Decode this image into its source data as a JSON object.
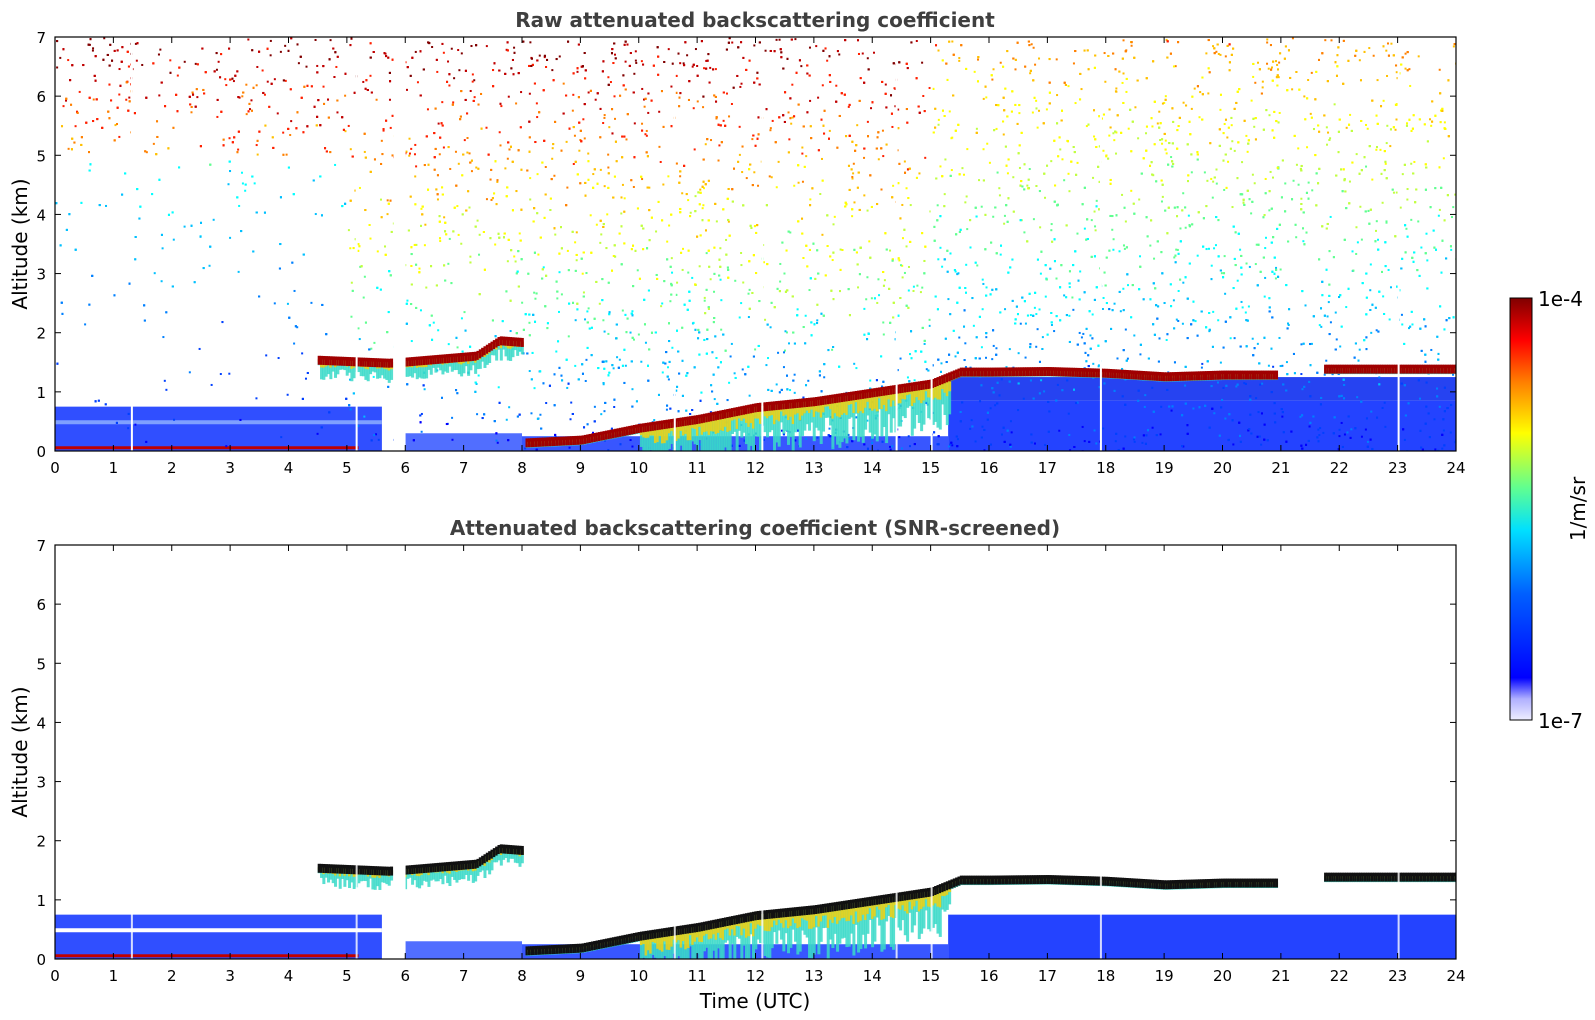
{
  "chart_data": [
    {
      "type": "heatmap",
      "title": "Raw attenuated backscattering coefficient",
      "xlabel": "",
      "ylabel": "Altitude (km)",
      "xlim": [
        0,
        24
      ],
      "ylim": [
        0,
        7
      ],
      "xticks": [
        "0",
        "1",
        "2",
        "3",
        "4",
        "5",
        "6",
        "7",
        "8",
        "9",
        "10",
        "11",
        "12",
        "13",
        "14",
        "15",
        "16",
        "17",
        "18",
        "19",
        "20",
        "21",
        "22",
        "23",
        "24"
      ],
      "yticks": [
        "0",
        "1",
        "2",
        "3",
        "4",
        "5",
        "6",
        "7"
      ],
      "screened": false,
      "cloud_base_km": [
        {
          "t": 4.5,
          "alt": 1.55
        },
        {
          "t": 5.7,
          "alt": 1.5
        },
        {
          "t": 6.0,
          "alt": 1.52
        },
        {
          "t": 7.2,
          "alt": 1.62
        },
        {
          "t": 7.6,
          "alt": 1.88
        },
        {
          "t": 8.0,
          "alt": 1.85
        },
        {
          "t": 8.0,
          "alt": 0.15
        },
        {
          "t": 9.0,
          "alt": 0.2
        },
        {
          "t": 10.0,
          "alt": 0.4
        },
        {
          "t": 11.0,
          "alt": 0.55
        },
        {
          "t": 12.0,
          "alt": 0.75
        },
        {
          "t": 13.0,
          "alt": 0.85
        },
        {
          "t": 14.0,
          "alt": 1.0
        },
        {
          "t": 15.0,
          "alt": 1.15
        },
        {
          "t": 15.5,
          "alt": 1.35
        },
        {
          "t": 16.0,
          "alt": 1.35
        },
        {
          "t": 17.0,
          "alt": 1.36
        },
        {
          "t": 18.0,
          "alt": 1.33
        },
        {
          "t": 19.0,
          "alt": 1.27
        },
        {
          "t": 20.0,
          "alt": 1.3
        },
        {
          "t": 20.9,
          "alt": 1.3
        },
        {
          "t": 21.7,
          "alt": 1.4
        },
        {
          "t": 24.0,
          "alt": 1.4
        }
      ]
    },
    {
      "type": "heatmap",
      "title": "Attenuated backscattering coefficient (SNR-screened)",
      "xlabel": "Time (UTC)",
      "ylabel": "Altitude (km)",
      "xlim": [
        0,
        24
      ],
      "ylim": [
        0,
        7
      ],
      "xticks": [
        "0",
        "1",
        "2",
        "3",
        "4",
        "5",
        "6",
        "7",
        "8",
        "9",
        "10",
        "11",
        "12",
        "13",
        "14",
        "15",
        "16",
        "17",
        "18",
        "19",
        "20",
        "21",
        "22",
        "23",
        "24"
      ],
      "yticks": [
        "0",
        "1",
        "2",
        "3",
        "4",
        "5",
        "6",
        "7"
      ],
      "screened": true,
      "cloud_base_km": [
        {
          "t": 4.5,
          "alt": 1.55
        },
        {
          "t": 5.7,
          "alt": 1.5
        },
        {
          "t": 6.0,
          "alt": 1.52
        },
        {
          "t": 7.2,
          "alt": 1.62
        },
        {
          "t": 7.6,
          "alt": 1.88
        },
        {
          "t": 8.0,
          "alt": 1.85
        },
        {
          "t": 8.0,
          "alt": 0.15
        },
        {
          "t": 9.0,
          "alt": 0.2
        },
        {
          "t": 10.0,
          "alt": 0.4
        },
        {
          "t": 11.0,
          "alt": 0.55
        },
        {
          "t": 12.0,
          "alt": 0.75
        },
        {
          "t": 13.0,
          "alt": 0.85
        },
        {
          "t": 14.0,
          "alt": 1.0
        },
        {
          "t": 15.0,
          "alt": 1.15
        },
        {
          "t": 15.5,
          "alt": 1.35
        },
        {
          "t": 16.0,
          "alt": 1.35
        },
        {
          "t": 17.0,
          "alt": 1.36
        },
        {
          "t": 18.0,
          "alt": 1.33
        },
        {
          "t": 19.0,
          "alt": 1.27
        },
        {
          "t": 20.0,
          "alt": 1.3
        },
        {
          "t": 20.9,
          "alt": 1.3
        },
        {
          "t": 21.7,
          "alt": 1.4
        },
        {
          "t": 24.0,
          "alt": 1.4
        }
      ]
    }
  ],
  "colorbar": {
    "label": "1/m/sr",
    "max_label": "1e-4",
    "min_label": "1e-7",
    "range": [
      1e-07,
      0.0001
    ],
    "scale": "log",
    "colors": [
      "#00007f",
      "#0000ff",
      "#007fff",
      "#00ffff",
      "#7fff7f",
      "#ffff00",
      "#ff7f00",
      "#ff0000",
      "#7f0000"
    ]
  }
}
